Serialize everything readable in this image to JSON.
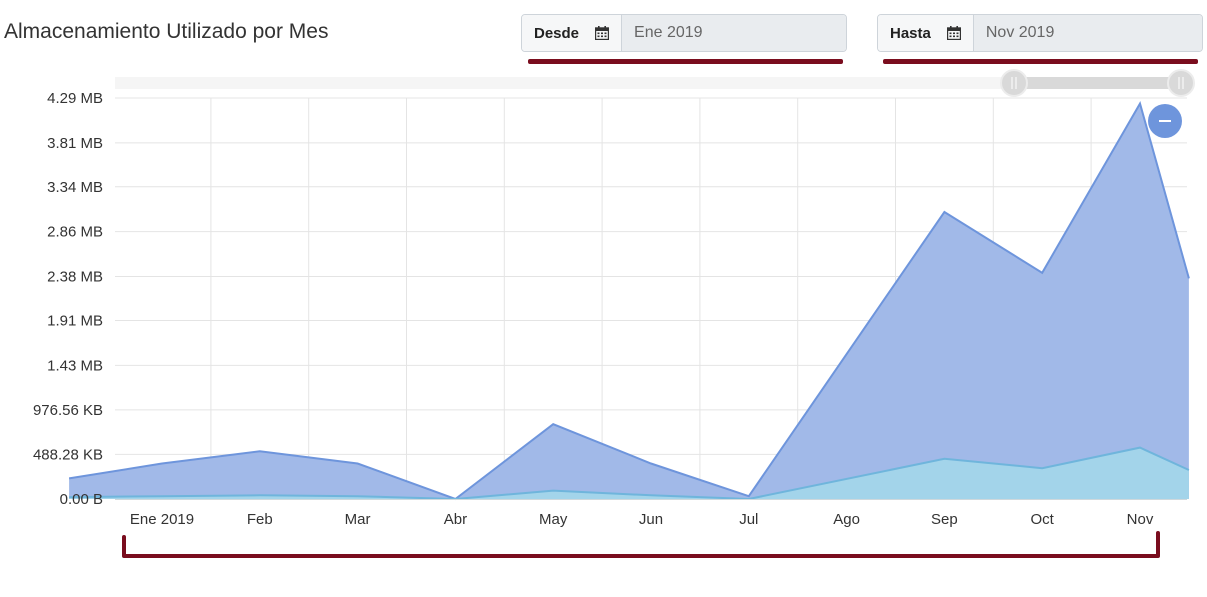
{
  "title": "Almacenamiento Utilizado por Mes",
  "filters": {
    "from": {
      "label": "Desde",
      "value": "Ene 2019",
      "icon": "calendar-icon"
    },
    "to": {
      "label": "Hasta",
      "value": "Nov 2019",
      "icon": "calendar-icon"
    }
  },
  "colors": {
    "accent_underline": "#7a0d1e",
    "series_total_fill": "#a1b9e8",
    "series_total_line": "#6e95dc",
    "series_used_fill": "#a3d4ea",
    "series_used_line": "#6fb5dc",
    "zoom_button": "#6e95dc"
  },
  "zoom_button": {
    "icon": "minus-icon"
  },
  "chart_data": {
    "type": "area",
    "categories": [
      "Ene 2019",
      "Feb",
      "Mar",
      "Abr",
      "May",
      "Jun",
      "Jul",
      "Ago",
      "Sep",
      "Oct",
      "Nov"
    ],
    "x_unit": "month",
    "series": [
      {
        "points": [
          [
            -0.95,
            0.22
          ],
          [
            0,
            0.38
          ],
          [
            1,
            0.51
          ],
          [
            2,
            0.38
          ],
          [
            3,
            0.0
          ],
          [
            4,
            0.8
          ],
          [
            5,
            0.38
          ],
          [
            6,
            0.03
          ],
          [
            8,
            3.07
          ],
          [
            9,
            2.42
          ],
          [
            10,
            4.23
          ],
          [
            10.5,
            2.36
          ]
        ]
      },
      {
        "points": [
          [
            -0.95,
            0.02
          ],
          [
            0,
            0.03
          ],
          [
            1,
            0.04
          ],
          [
            2,
            0.03
          ],
          [
            3,
            0.0
          ],
          [
            4,
            0.09
          ],
          [
            5,
            0.04
          ],
          [
            6,
            0.0
          ],
          [
            8,
            0.43
          ],
          [
            9,
            0.33
          ],
          [
            10,
            0.55
          ],
          [
            10.5,
            0.31
          ]
        ]
      }
    ],
    "y_unit": "MB",
    "ylim": [
      0,
      4.29
    ],
    "y_ticks": [
      0,
      0.477,
      0.954,
      1.43,
      1.91,
      2.38,
      2.86,
      3.34,
      3.81,
      4.29
    ],
    "y_tick_labels": [
      "0.00 B",
      "488.28 KB",
      "976.56 KB",
      "1.43 MB",
      "1.91 MB",
      "2.38 MB",
      "2.86 MB",
      "3.34 MB",
      "3.81 MB",
      "4.29 MB"
    ],
    "xlim": [
      -0.95,
      10.5
    ],
    "grid": true,
    "legend": "none"
  }
}
